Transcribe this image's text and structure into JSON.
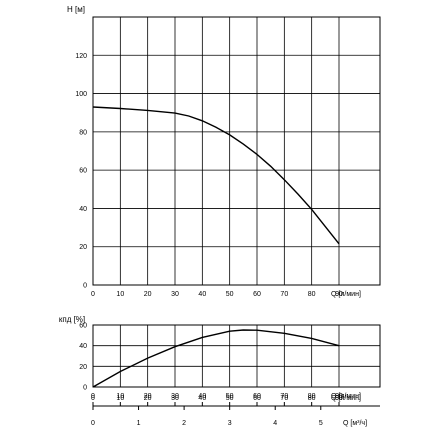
{
  "chart_data": [
    {
      "type": "line",
      "ylabel": "H [м]",
      "xlabel": "Q [л/мин]",
      "xlim": [
        0,
        105
      ],
      "ylim": [
        0,
        140
      ],
      "x_ticks": [
        0,
        10,
        20,
        30,
        40,
        50,
        60,
        70,
        80,
        90
      ],
      "y_ticks": [
        0,
        20,
        40,
        60,
        80,
        100,
        120
      ],
      "grid": true,
      "series": [
        {
          "x": [
            0,
            10,
            20,
            30,
            35,
            40,
            45,
            50,
            55,
            60,
            65,
            70,
            75,
            80,
            85,
            90
          ],
          "y": [
            93,
            92.2,
            91.2,
            89.8,
            88.3,
            85.8,
            82.4,
            78.4,
            73.6,
            68.2,
            62,
            55,
            47.5,
            39.5,
            30.5,
            21.5
          ]
        }
      ]
    },
    {
      "type": "line",
      "ylabel": "кпд [%]",
      "xlabel": "Q [л/мин]",
      "xlim": [
        0,
        105
      ],
      "ylim": [
        0,
        60
      ],
      "x_ticks": [
        0,
        10,
        20,
        30,
        40,
        50,
        60,
        70,
        80,
        90
      ],
      "y_ticks": [
        0,
        20,
        40,
        60
      ],
      "grid": true,
      "series": [
        {
          "x": [
            0,
            10,
            20,
            30,
            40,
            50,
            55,
            60,
            70,
            80,
            90
          ],
          "y": [
            0,
            15,
            28,
            39,
            48,
            54,
            55.2,
            55,
            52,
            47,
            40
          ]
        }
      ]
    },
    {
      "type": "axis",
      "xlabel": "Q [м³/ч]",
      "xlim": [
        0,
        6.3
      ],
      "x_ticks": [
        0,
        1,
        2,
        3,
        4,
        5
      ]
    }
  ]
}
